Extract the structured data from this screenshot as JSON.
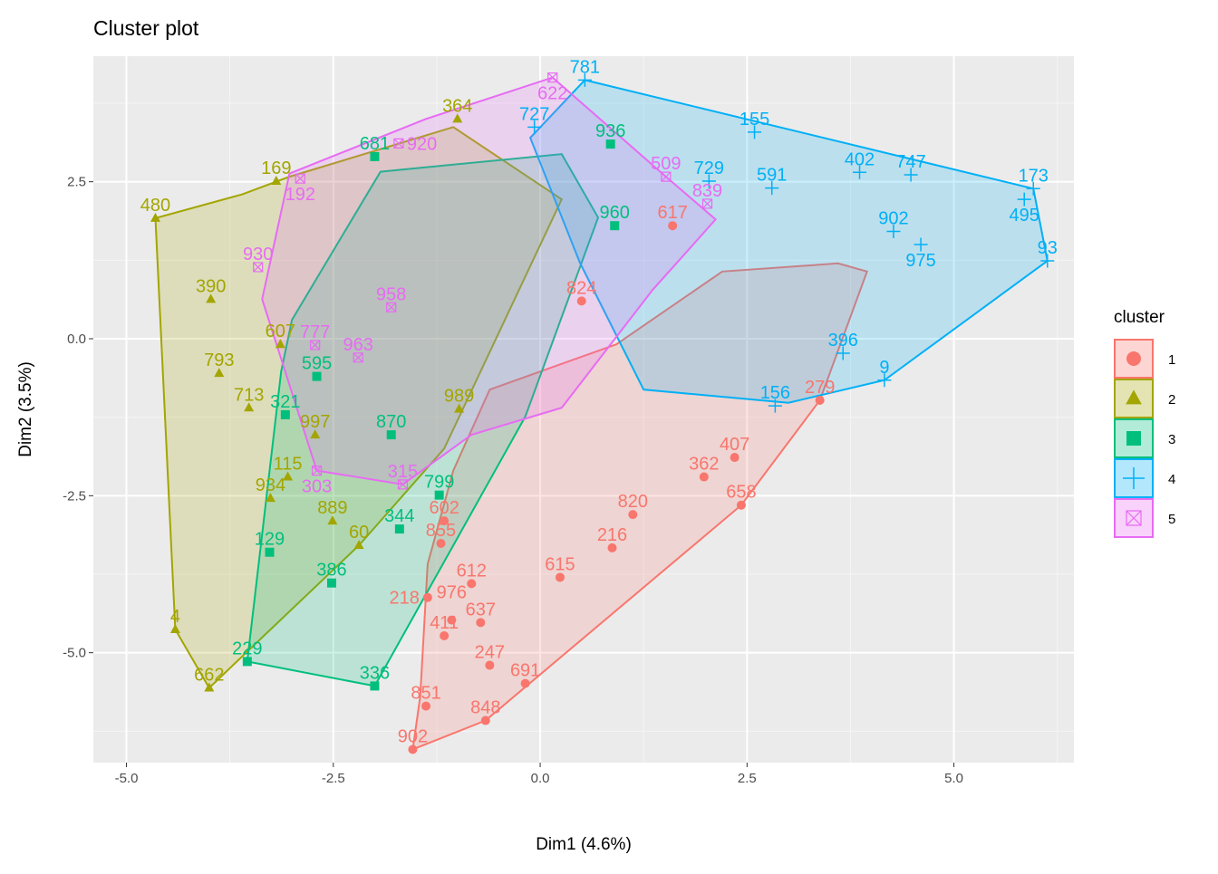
{
  "chart_data": {
    "type": "scatter",
    "title": "Cluster plot",
    "xlabel": "Dim1 (4.6%)",
    "ylabel": "Dim2 (3.5%)",
    "xlim": [
      -5.4,
      6.45
    ],
    "ylim": [
      -6.75,
      4.5
    ],
    "xticks": [
      -5.0,
      -2.5,
      0.0,
      2.5,
      5.0
    ],
    "xtick_labels": [
      "-5.0",
      "-2.5",
      "0.0",
      "2.5",
      "5.0"
    ],
    "yticks": [
      -5.0,
      -2.5,
      0.0,
      2.5
    ],
    "ytick_labels": [
      "-5.0",
      "-2.5",
      "0.0",
      "2.5"
    ],
    "grid": true,
    "legend": {
      "title": "cluster",
      "position": "right",
      "entries": [
        "1",
        "2",
        "3",
        "4",
        "5"
      ]
    },
    "series": [
      {
        "name": "1",
        "color": "#F8766D",
        "shape": "circle",
        "hull": [
          [
            -1.54,
            -6.54
          ],
          [
            -0.66,
            -6.08
          ],
          [
            2.43,
            -2.65
          ],
          [
            3.38,
            -0.98
          ],
          [
            3.95,
            1.07
          ],
          [
            3.6,
            1.2
          ],
          [
            2.2,
            1.07
          ],
          [
            0.92,
            -0.09
          ],
          [
            -0.61,
            -0.81
          ],
          [
            -1.05,
            -2.1
          ],
          [
            -1.36,
            -3.59
          ],
          [
            -1.45,
            -5.7
          ]
        ],
        "points": [
          {
            "label": "902",
            "x": -1.54,
            "y": -6.54
          },
          {
            "label": "848",
            "x": -0.66,
            "y": -6.08
          },
          {
            "label": "851",
            "x": -1.38,
            "y": -5.85
          },
          {
            "label": "691",
            "x": -0.18,
            "y": -5.49
          },
          {
            "label": "247",
            "x": -0.61,
            "y": -5.2
          },
          {
            "label": "411",
            "x": -1.16,
            "y": -4.73
          },
          {
            "label": "976",
            "x": -1.07,
            "y": -4.48
          },
          {
            "label": "637",
            "x": -0.72,
            "y": -4.52
          },
          {
            "label": "218",
            "x": -1.36,
            "y": -4.12
          },
          {
            "label": "612",
            "x": -0.83,
            "y": -3.9
          },
          {
            "label": "615",
            "x": 0.24,
            "y": -3.8
          },
          {
            "label": "216",
            "x": 0.87,
            "y": -3.33
          },
          {
            "label": "820",
            "x": 1.12,
            "y": -2.8
          },
          {
            "label": "658",
            "x": 2.43,
            "y": -2.65
          },
          {
            "label": "362",
            "x": 1.98,
            "y": -2.2
          },
          {
            "label": "407",
            "x": 2.35,
            "y": -1.89
          },
          {
            "label": "279",
            "x": 3.38,
            "y": -0.98
          },
          {
            "label": "855",
            "x": -1.2,
            "y": -3.26
          },
          {
            "label": "602",
            "x": -1.16,
            "y": -2.9
          },
          {
            "label": "617",
            "x": 1.6,
            "y": 1.8
          },
          {
            "label": "824",
            "x": 0.5,
            "y": 0.6
          }
        ]
      },
      {
        "name": "2",
        "color": "#A3A500",
        "shape": "triangle",
        "hull": [
          [
            -4.65,
            1.92
          ],
          [
            -4.41,
            -4.63
          ],
          [
            -4.0,
            -5.56
          ],
          [
            -2.19,
            -3.29
          ],
          [
            -1.16,
            -1.75
          ],
          [
            0.26,
            2.22
          ],
          [
            -1.05,
            3.37
          ],
          [
            -3.03,
            2.58
          ],
          [
            -3.6,
            2.3
          ]
        ],
        "points": [
          {
            "label": "480",
            "x": -4.65,
            "y": 1.92
          },
          {
            "label": "4",
            "x": -4.41,
            "y": -4.63
          },
          {
            "label": "662",
            "x": -4.0,
            "y": -5.56
          },
          {
            "label": "60",
            "x": -2.19,
            "y": -3.29
          },
          {
            "label": "713",
            "x": -3.52,
            "y": -1.1
          },
          {
            "label": "793",
            "x": -3.88,
            "y": -0.55
          },
          {
            "label": "390",
            "x": -3.98,
            "y": 0.63
          },
          {
            "label": "169",
            "x": -3.19,
            "y": 2.51
          },
          {
            "label": "889",
            "x": -2.51,
            "y": -2.9
          },
          {
            "label": "934",
            "x": -3.26,
            "y": -2.54
          },
          {
            "label": "997",
            "x": -2.72,
            "y": -1.53
          },
          {
            "label": "989",
            "x": -0.98,
            "y": -1.12
          },
          {
            "label": "607",
            "x": -3.14,
            "y": -0.09
          },
          {
            "label": "115",
            "x": -3.05,
            "y": -2.2
          },
          {
            "label": "364",
            "x": -1.0,
            "y": 3.5
          }
        ]
      },
      {
        "name": "3",
        "color": "#00BF7D",
        "shape": "square",
        "hull": [
          [
            -3.54,
            -5.14
          ],
          [
            -2.0,
            -5.53
          ],
          [
            -0.18,
            -1.24
          ],
          [
            0.7,
            1.93
          ],
          [
            0.26,
            2.94
          ],
          [
            -1.93,
            2.66
          ],
          [
            -3.0,
            0.3
          ],
          [
            -3.13,
            -0.52
          ]
        ],
        "points": [
          {
            "label": "229",
            "x": -3.54,
            "y": -5.14
          },
          {
            "label": "336",
            "x": -2.0,
            "y": -5.53
          },
          {
            "label": "386",
            "x": -2.52,
            "y": -3.89
          },
          {
            "label": "344",
            "x": -1.7,
            "y": -3.03
          },
          {
            "label": "799",
            "x": -1.22,
            "y": -2.49
          },
          {
            "label": "129",
            "x": -3.27,
            "y": -3.4
          },
          {
            "label": "321",
            "x": -3.08,
            "y": -1.21
          },
          {
            "label": "870",
            "x": -1.8,
            "y": -1.53
          },
          {
            "label": "595",
            "x": -2.7,
            "y": -0.6
          },
          {
            "label": "681",
            "x": -2.0,
            "y": 2.9
          },
          {
            "label": "960",
            "x": 0.9,
            "y": 1.8
          },
          {
            "label": "936",
            "x": 0.85,
            "y": 3.1
          }
        ]
      },
      {
        "name": "4",
        "color": "#00B0F6",
        "shape": "plus",
        "hull": [
          [
            0.54,
            4.12
          ],
          [
            5.96,
            2.39
          ],
          [
            6.13,
            1.24
          ],
          [
            4.16,
            -0.66
          ],
          [
            3.0,
            -1.02
          ],
          [
            1.25,
            -0.81
          ],
          [
            0.48,
            1.21
          ],
          [
            -0.12,
            3.2
          ]
        ],
        "points": [
          {
            "label": "727",
            "x": -0.07,
            "y": 3.37
          },
          {
            "label": "781",
            "x": 0.54,
            "y": 4.12
          },
          {
            "label": "155",
            "x": 2.59,
            "y": 3.29
          },
          {
            "label": "747",
            "x": 4.48,
            "y": 2.61
          },
          {
            "label": "402",
            "x": 3.86,
            "y": 2.65
          },
          {
            "label": "173",
            "x": 5.96,
            "y": 2.39
          },
          {
            "label": "495",
            "x": 5.85,
            "y": 2.22
          },
          {
            "label": "93",
            "x": 6.13,
            "y": 1.24
          },
          {
            "label": "9",
            "x": 4.16,
            "y": -0.66
          },
          {
            "label": "156",
            "x": 2.84,
            "y": -1.07
          },
          {
            "label": "396",
            "x": 3.66,
            "y": -0.23
          },
          {
            "label": "729",
            "x": 2.04,
            "y": 2.51
          },
          {
            "label": "902",
            "x": 4.27,
            "y": 1.71
          },
          {
            "label": "975",
            "x": 4.6,
            "y": 1.5
          },
          {
            "label": "591",
            "x": 2.8,
            "y": 2.4
          }
        ]
      },
      {
        "name": "5",
        "color": "#E76BF3",
        "shape": "boxcross",
        "hull": [
          [
            0.15,
            4.16
          ],
          [
            1.52,
            2.58
          ],
          [
            2.12,
            1.9
          ],
          [
            1.36,
            0.78
          ],
          [
            0.26,
            -1.1
          ],
          [
            -0.83,
            -1.53
          ],
          [
            -1.66,
            -2.32
          ],
          [
            -2.7,
            -2.1
          ],
          [
            -3.36,
            0.63
          ],
          [
            -3.03,
            2.63
          ],
          [
            -1.38,
            3.5
          ]
        ],
        "points": [
          {
            "label": "622",
            "x": 0.15,
            "y": 4.16
          },
          {
            "label": "920",
            "x": -1.71,
            "y": 3.11
          },
          {
            "label": "192",
            "x": -2.9,
            "y": 2.55
          },
          {
            "label": "303",
            "x": -2.7,
            "y": -2.1
          },
          {
            "label": "315",
            "x": -1.66,
            "y": -2.32
          },
          {
            "label": "839",
            "x": 2.02,
            "y": 2.15
          },
          {
            "label": "509",
            "x": 1.52,
            "y": 2.58
          },
          {
            "label": "930",
            "x": -3.41,
            "y": 1.14
          },
          {
            "label": "777",
            "x": -2.72,
            "y": -0.1
          },
          {
            "label": "963",
            "x": -2.2,
            "y": -0.3
          },
          {
            "label": "958",
            "x": -1.8,
            "y": 0.5
          }
        ]
      }
    ]
  }
}
